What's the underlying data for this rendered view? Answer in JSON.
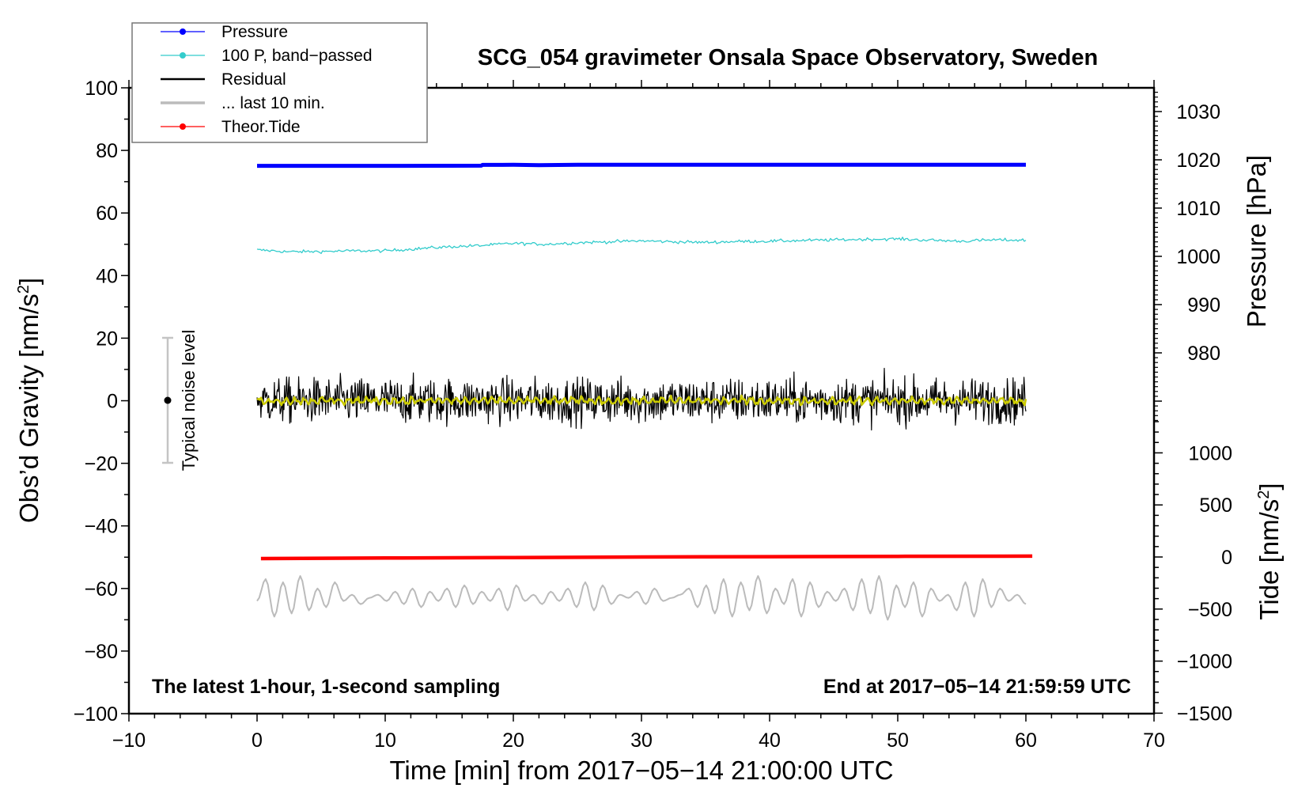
{
  "chart_data": {
    "type": "line",
    "title": "SCG_054 gravimeter Onsala Space Observatory, Sweden",
    "xlabel": "Time [min] from 2017−05−14 21:00:00 UTC",
    "ylabel_left": "Obs’d Gravity [nm/s",
    "ylabel_left_sup": "2",
    "ylabel_left_end": "]",
    "ylabel_right_pressure": "Pressure [hPa]",
    "ylabel_right_tide": "Tide [nm/s",
    "ylabel_right_tide_sup": "2",
    "ylabel_right_tide_end": "]",
    "xlim": [
      -10,
      70
    ],
    "ylim_left": [
      -100,
      100
    ],
    "x_ticks": [
      "−10",
      "0",
      "10",
      "20",
      "30",
      "40",
      "50",
      "60",
      "70"
    ],
    "x_tick_values": [
      -10,
      0,
      10,
      20,
      30,
      40,
      50,
      60,
      70
    ],
    "y_left_ticks": [
      "−100",
      "−80",
      "−60",
      "−40",
      "−20",
      "0",
      "20",
      "40",
      "60",
      "80",
      "100"
    ],
    "y_left_tick_values": [
      -100,
      -80,
      -60,
      -40,
      -20,
      0,
      20,
      40,
      60,
      80,
      100
    ],
    "pressure_ticks": [
      "980",
      "990",
      "1000",
      "1010",
      "1020",
      "1030"
    ],
    "pressure_tick_values": [
      980,
      990,
      1000,
      1010,
      1020,
      1030
    ],
    "tide_ticks": [
      "−1500",
      "−1000",
      "−500",
      "0",
      "500",
      "1000"
    ],
    "tide_tick_values": [
      -1500,
      -1000,
      -500,
      0,
      500,
      1000
    ],
    "annotation_left": "The latest 1-hour, 1-second sampling",
    "annotation_right": "End at 2017−05−14 21:59:59 UTC",
    "noise_label": "Typical noise level",
    "noise_level": {
      "center": 0,
      "range": [
        -20,
        20
      ]
    },
    "legend": {
      "placement": "top-left",
      "entries": [
        {
          "label": "Pressure",
          "color": "#0000ff",
          "marker": true
        },
        {
          "label": "100 P, band−passed",
          "color": "#33cccc",
          "marker": true
        },
        {
          "label": "Residual",
          "color": "#000000",
          "marker": false
        },
        {
          "label": "... last 10 min.",
          "color": "#bbbbbb",
          "marker": false
        },
        {
          "label": "Theor.Tide",
          "color": "#ff0000",
          "marker": true
        }
      ]
    },
    "series": [
      {
        "name": "Pressure",
        "axis": "pressure_hPa",
        "color": "#0000ff",
        "x": [
          0,
          5,
          10,
          15,
          17.5,
          17.6,
          20,
          22,
          25,
          30,
          35,
          40,
          45,
          50,
          55,
          60
        ],
        "y": [
          1018.75,
          1018.75,
          1018.76,
          1018.77,
          1018.78,
          1018.95,
          1018.96,
          1018.9,
          1018.97,
          1018.98,
          1018.98,
          1018.98,
          1018.98,
          1018.98,
          1018.98,
          1018.98
        ]
      },
      {
        "name": "100 P, band-passed",
        "axis": "gravity",
        "color": "#33cccc",
        "x": [
          0,
          2.5,
          5,
          7.5,
          10,
          12.5,
          15,
          17.5,
          20,
          22.5,
          25,
          27.5,
          30,
          32.5,
          35,
          37.5,
          40,
          42.5,
          45,
          47.5,
          50,
          52.5,
          55,
          57.5,
          60
        ],
        "y": [
          48.2,
          47.6,
          47.7,
          47.9,
          47.9,
          48.6,
          49.2,
          49.6,
          50.3,
          50.0,
          50.5,
          50.8,
          51.1,
          50.8,
          50.6,
          50.9,
          51.0,
          51.2,
          51.4,
          51.6,
          51.7,
          51.3,
          51.0,
          51.4,
          51.3
        ]
      },
      {
        "name": "Residual",
        "axis": "gravity",
        "color": "#000000",
        "noise_amplitude": 4.5,
        "mean": 0,
        "extremes": [
          -10,
          11
        ]
      },
      {
        "name": "Residual smoothed",
        "axis": "gravity",
        "color": "#cccc00",
        "noise_amplitude": 1.2,
        "mean": 0
      },
      {
        "name": "... last 10 min.",
        "axis": "gravity",
        "color": "#bbbbbb",
        "x_range": [
          0,
          60
        ],
        "y": [
          -64,
          -57,
          -69,
          -58,
          -68,
          -56,
          -67,
          -60,
          -66,
          -58,
          -64,
          -62,
          -65,
          -63,
          -62,
          -64,
          -61,
          -65,
          -60,
          -66,
          -61,
          -64,
          -60,
          -66,
          -59,
          -65,
          -61,
          -64,
          -60,
          -67,
          -59,
          -64,
          -62,
          -65,
          -61,
          -64,
          -60,
          -66,
          -58,
          -67,
          -59,
          -65,
          -62,
          -63,
          -61,
          -65,
          -60,
          -64,
          -63,
          -62,
          -60,
          -66,
          -59,
          -68,
          -57,
          -69,
          -58,
          -67,
          -56,
          -68,
          -60,
          -65,
          -57,
          -69,
          -58,
          -66,
          -61,
          -64,
          -60,
          -67,
          -57,
          -68,
          -56,
          -70,
          -59,
          -66,
          -58,
          -69,
          -60,
          -64,
          -62,
          -67,
          -58,
          -69,
          -57,
          -66,
          -60,
          -64,
          -62,
          -65
        ]
      },
      {
        "name": "Theor.Tide",
        "axis": "tide",
        "color": "#ff0000",
        "x": [
          0.3,
          10,
          20,
          30,
          40,
          50,
          60.5
        ],
        "y": [
          -15,
          -10,
          -5,
          0,
          3,
          6,
          8
        ]
      }
    ]
  }
}
